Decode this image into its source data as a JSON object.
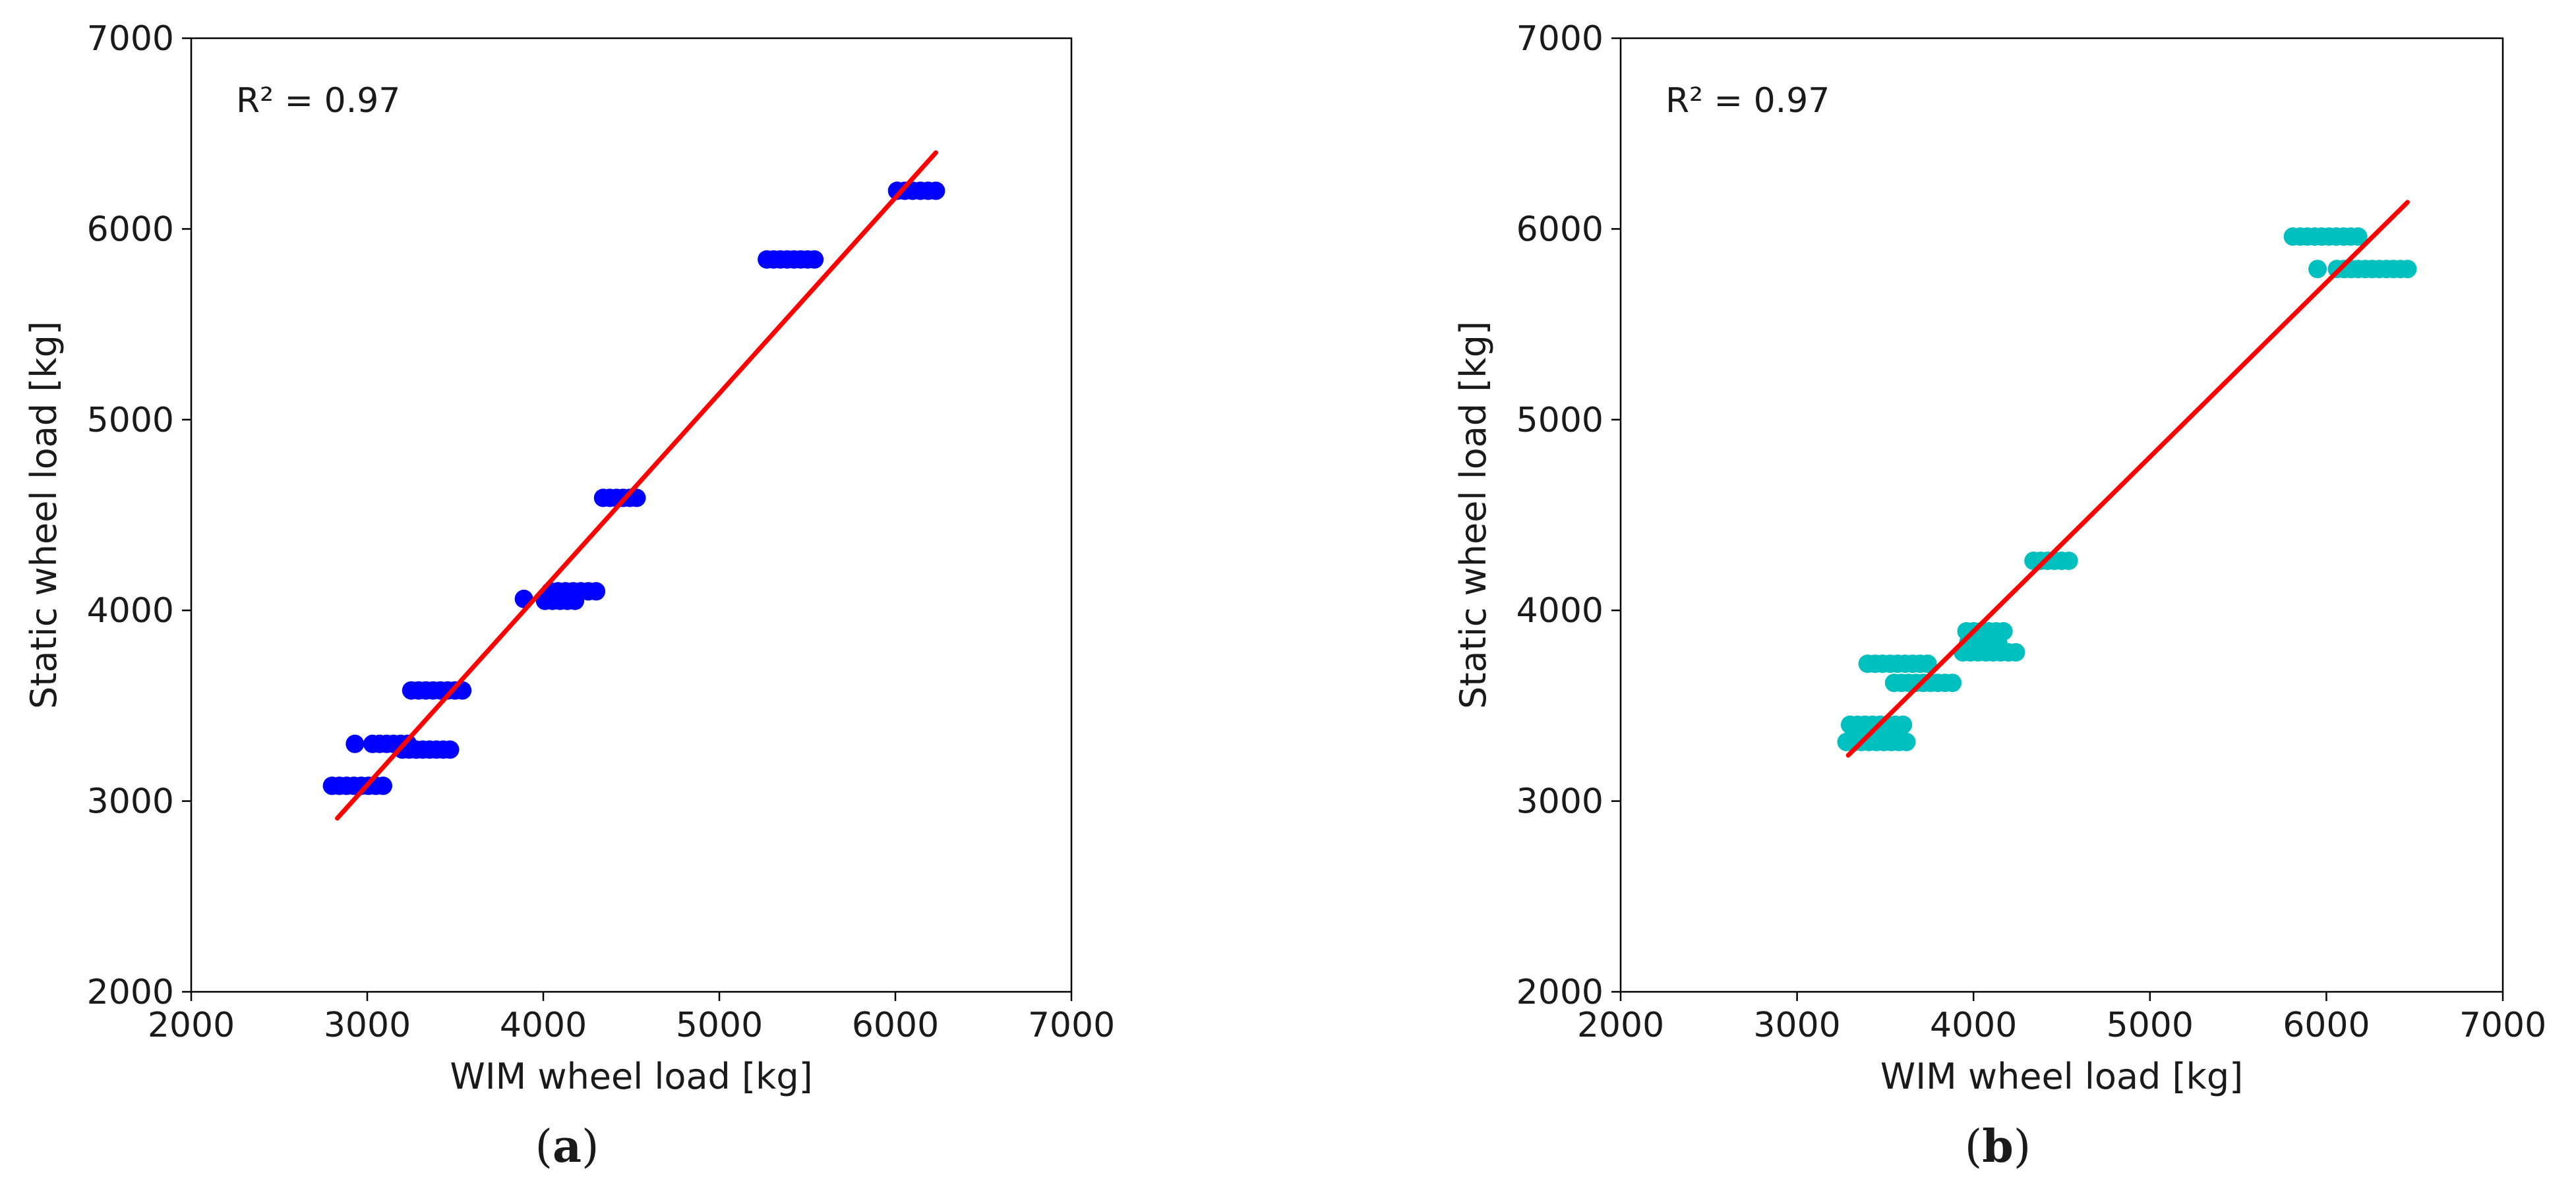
{
  "chart_data": [
    {
      "type": "scatter",
      "panel_label": {
        "open": "(",
        "letter": "a",
        "close": ")"
      },
      "xlabel": "WIM wheel load [kg]",
      "ylabel": "Static wheel load [kg]",
      "xlim": [
        2000,
        7000
      ],
      "ylim": [
        2000,
        7000
      ],
      "xticks": [
        2000,
        3000,
        4000,
        5000,
        6000,
        7000
      ],
      "yticks": [
        2000,
        3000,
        4000,
        5000,
        6000,
        7000
      ],
      "annotation": "R² = 0.97",
      "grid": false,
      "point_color": "#0000ff",
      "fit_color": "#ff0000",
      "fit_line": {
        "x": [
          2830,
          6230
        ],
        "y": [
          2910,
          6400
        ]
      },
      "clusters": [
        {
          "y": 3080,
          "x": [
            2800,
            3090
          ]
        },
        {
          "y": 3300,
          "x": [
            2930,
            2930
          ]
        },
        {
          "y": 3300,
          "x": [
            3030,
            3230
          ]
        },
        {
          "y": 3270,
          "x": [
            3200,
            3470
          ]
        },
        {
          "y": 3580,
          "x": [
            3250,
            3540
          ]
        },
        {
          "y": 4060,
          "x": [
            3890,
            3890
          ]
        },
        {
          "y": 4050,
          "x": [
            4010,
            4180
          ]
        },
        {
          "y": 4100,
          "x": [
            4040,
            4300
          ]
        },
        {
          "y": 4590,
          "x": [
            4340,
            4530
          ]
        },
        {
          "y": 5840,
          "x": [
            5270,
            5540
          ]
        },
        {
          "y": 6200,
          "x": [
            6010,
            6230
          ]
        }
      ]
    },
    {
      "type": "scatter",
      "panel_label": {
        "open": "(",
        "letter": "b",
        "close": ")"
      },
      "xlabel": "WIM wheel load [kg]",
      "ylabel": "Static wheel load [kg]",
      "xlim": [
        2000,
        7000
      ],
      "ylim": [
        2000,
        7000
      ],
      "xticks": [
        2000,
        3000,
        4000,
        5000,
        6000,
        7000
      ],
      "yticks": [
        2000,
        3000,
        4000,
        5000,
        6000,
        7000
      ],
      "annotation": "R² = 0.97",
      "grid": false,
      "point_color": "#00bfbf",
      "fit_color": "#ff0000",
      "fit_line": {
        "x": [
          3290,
          6460
        ],
        "y": [
          3240,
          6140
        ]
      },
      "clusters": [
        {
          "y": 3310,
          "x": [
            3280,
            3620
          ]
        },
        {
          "y": 3340,
          "x": [
            3320,
            3580
          ]
        },
        {
          "y": 3400,
          "x": [
            3300,
            3600
          ]
        },
        {
          "y": 3720,
          "x": [
            3400,
            3740
          ]
        },
        {
          "y": 3620,
          "x": [
            3550,
            3880
          ]
        },
        {
          "y": 3780,
          "x": [
            3940,
            4240
          ]
        },
        {
          "y": 3830,
          "x": [
            3970,
            4140
          ]
        },
        {
          "y": 3890,
          "x": [
            3960,
            4170
          ]
        },
        {
          "y": 4260,
          "x": [
            4340,
            4540
          ]
        },
        {
          "y": 5960,
          "x": [
            5810,
            6180
          ]
        },
        {
          "y": 5790,
          "x": [
            5950,
            5950
          ]
        },
        {
          "y": 5790,
          "x": [
            6060,
            6460
          ]
        }
      ]
    }
  ]
}
